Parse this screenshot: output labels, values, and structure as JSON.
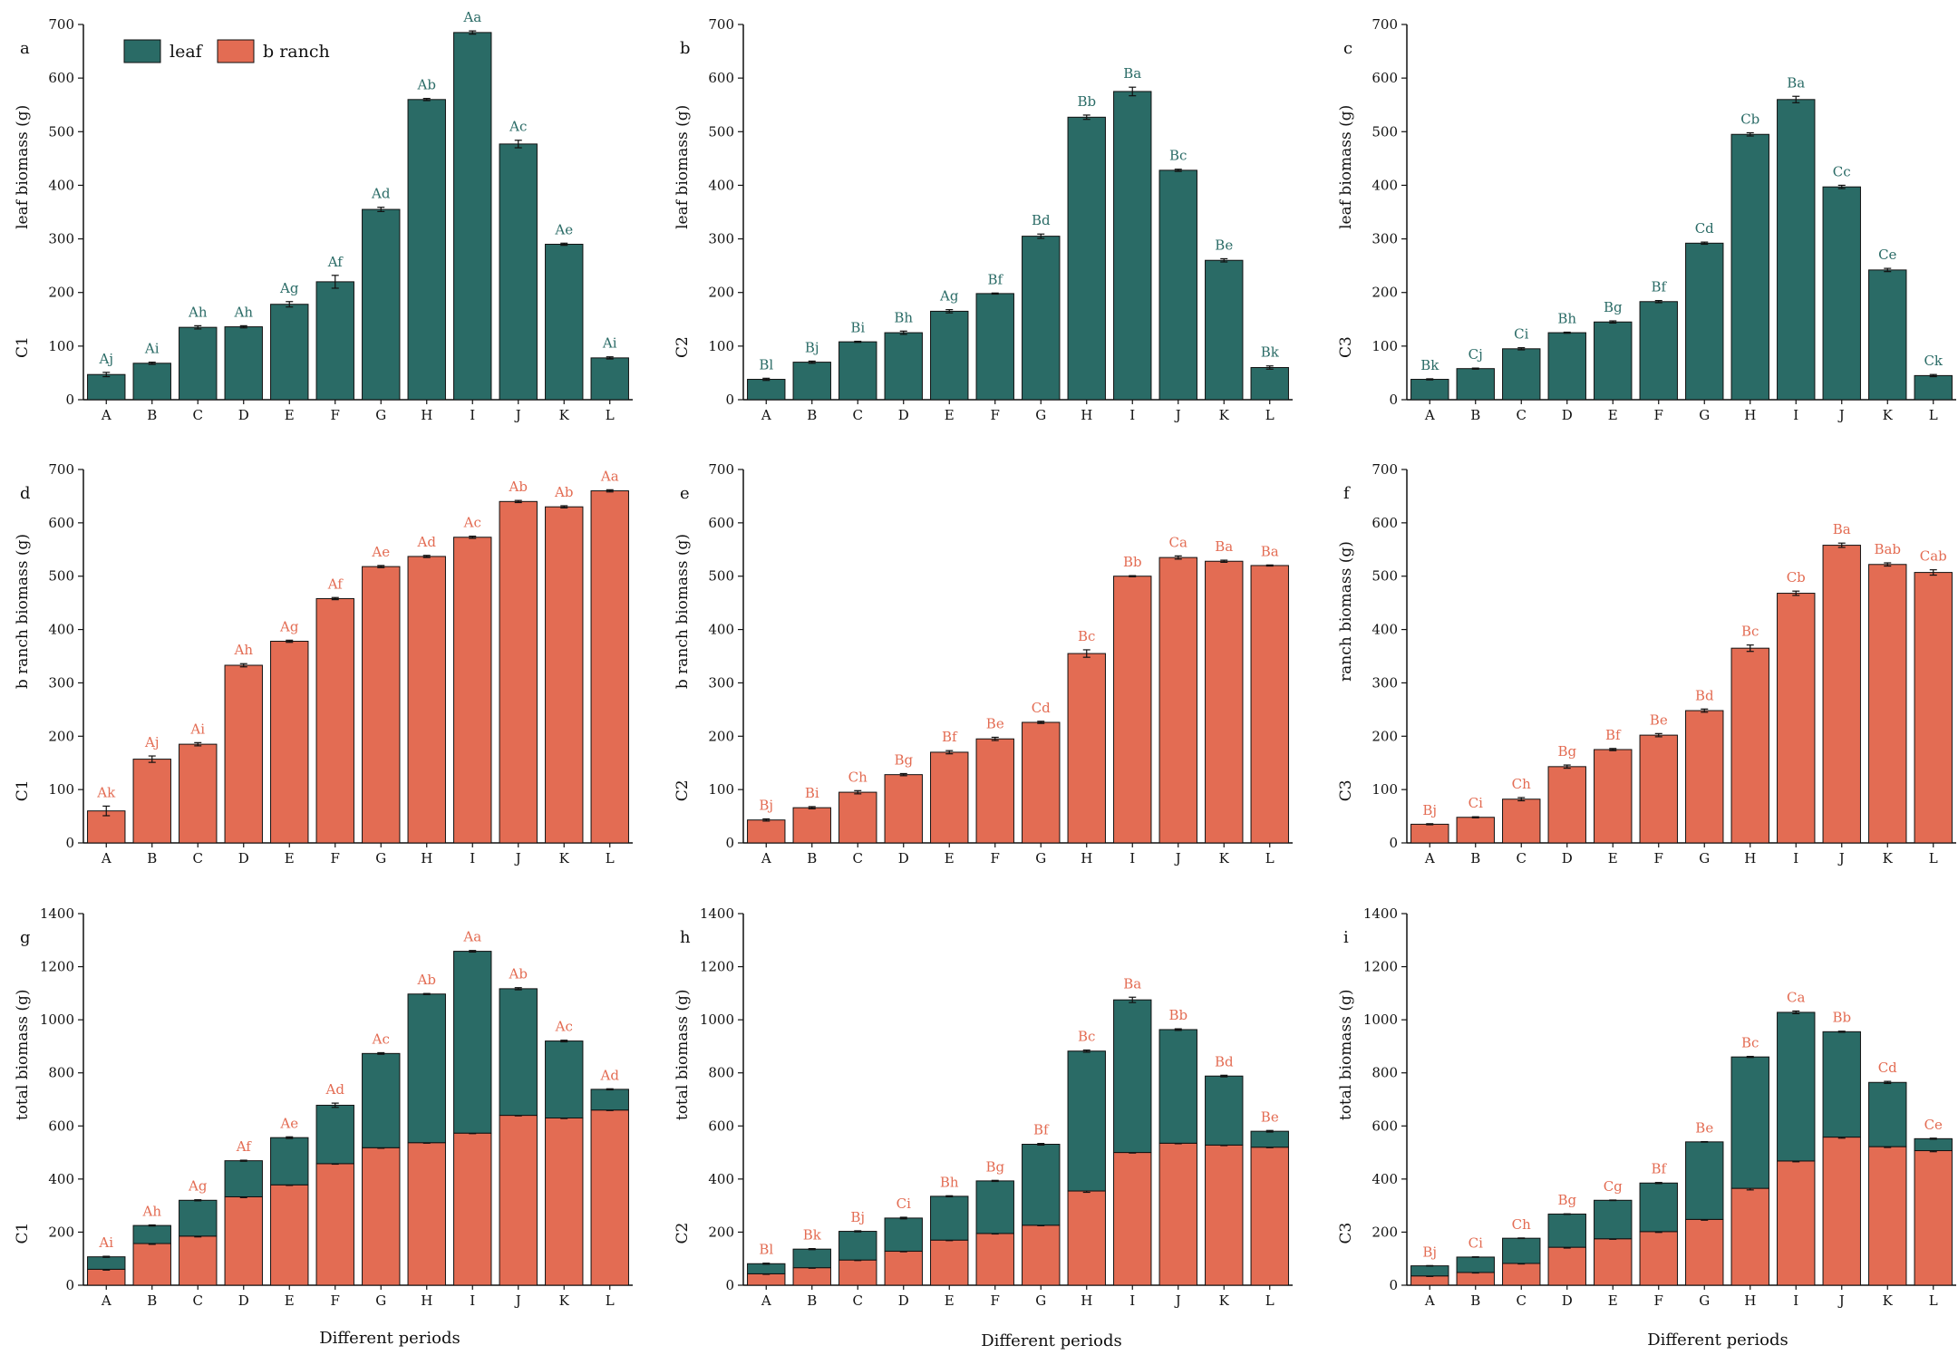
{
  "colors": {
    "leaf": "#2a6b66",
    "branch": "#e36c53",
    "axis": "#111111"
  },
  "legend": {
    "leaf": "leaf",
    "branch": "b ranch"
  },
  "xtitle": "Different periods",
  "categories": [
    "A",
    "B",
    "C",
    "D",
    "E",
    "F",
    "G",
    "H",
    "I",
    "J",
    "K",
    "L"
  ],
  "chart_data": [
    {
      "panel": "a",
      "type": "bar",
      "ylabel": "leaf biomass (g)",
      "site": "C1",
      "ylim": [
        0,
        700
      ],
      "ticks": [
        0,
        100,
        200,
        300,
        400,
        500,
        600,
        700
      ],
      "series": [
        {
          "name": "leaf",
          "values": [
            47,
            68,
            135,
            136,
            178,
            220,
            355,
            560,
            685,
            477,
            290,
            78
          ],
          "errors": [
            4,
            2,
            3,
            2,
            5,
            12,
            4,
            2,
            3,
            7,
            2,
            2
          ]
        }
      ],
      "labels": [
        "Aj",
        "Ai",
        "Ah",
        "Ah",
        "Ag",
        "Af",
        "Ad",
        "Ab",
        "Aa",
        "Ac",
        "Ae",
        "Ai"
      ]
    },
    {
      "panel": "b",
      "type": "bar",
      "ylabel": "leaf biomass (g)",
      "site": "C2",
      "ylim": [
        0,
        700
      ],
      "ticks": [
        0,
        100,
        200,
        300,
        400,
        500,
        600,
        700
      ],
      "series": [
        {
          "name": "leaf",
          "values": [
            38,
            70,
            108,
            125,
            165,
            198,
            305,
            527,
            575,
            428,
            260,
            60
          ],
          "errors": [
            2,
            2,
            1,
            3,
            3,
            1,
            4,
            4,
            8,
            2,
            3,
            3
          ]
        }
      ],
      "labels": [
        "Bl",
        "Bj",
        "Bi",
        "Bh",
        "Ag",
        "Bf",
        "Bd",
        "Bb",
        "Ba",
        "Bc",
        "Be",
        "Bk"
      ]
    },
    {
      "panel": "c",
      "type": "bar",
      "ylabel": "leaf biomass (g)",
      "site": "C3",
      "ylim": [
        0,
        700
      ],
      "ticks": [
        0,
        100,
        200,
        300,
        400,
        500,
        600,
        700
      ],
      "series": [
        {
          "name": "leaf",
          "values": [
            38,
            58,
            95,
            125,
            145,
            183,
            292,
            495,
            560,
            397,
            242,
            45
          ],
          "errors": [
            1,
            1,
            2,
            1,
            2,
            2,
            2,
            3,
            6,
            3,
            3,
            2
          ]
        }
      ],
      "labels": [
        "Bk",
        "Cj",
        "Ci",
        "Bh",
        "Bg",
        "Bf",
        "Cd",
        "Cb",
        "Ba",
        "Cc",
        "Ce",
        "Ck"
      ]
    },
    {
      "panel": "d",
      "type": "bar",
      "ylabel": "b ranch biomass (g)",
      "site": "C1",
      "ylim": [
        0,
        700
      ],
      "ticks": [
        0,
        100,
        200,
        300,
        400,
        500,
        600,
        700
      ],
      "series": [
        {
          "name": "branch",
          "values": [
            60,
            157,
            185,
            333,
            378,
            458,
            518,
            537,
            573,
            640,
            630,
            660
          ],
          "errors": [
            9,
            6,
            3,
            3,
            2,
            2,
            2,
            2,
            2,
            2,
            2,
            2
          ]
        }
      ],
      "labels": [
        "Ak",
        "Aj",
        "Ai",
        "Ah",
        "Ag",
        "Af",
        "Ae",
        "Ad",
        "Ac",
        "Ab",
        "Ab",
        "Aa"
      ]
    },
    {
      "panel": "e",
      "type": "bar",
      "ylabel": "b ranch biomass (g)",
      "site": "C2",
      "ylim": [
        0,
        700
      ],
      "ticks": [
        0,
        100,
        200,
        300,
        400,
        500,
        600,
        700
      ],
      "series": [
        {
          "name": "branch",
          "values": [
            43,
            66,
            95,
            128,
            170,
            195,
            226,
            355,
            500,
            535,
            528,
            520
          ],
          "errors": [
            2,
            2,
            3,
            2,
            3,
            3,
            2,
            7,
            1,
            3,
            2,
            1
          ]
        }
      ],
      "labels": [
        "Bj",
        "Bi",
        "Ch",
        "Bg",
        "Bf",
        "Be",
        "Cd",
        "Bc",
        "Bb",
        "Ca",
        "Ba",
        "Ba"
      ]
    },
    {
      "panel": "f",
      "type": "bar",
      "ylabel": "ranch biomass (g)",
      "site": "C3",
      "ylim": [
        0,
        700
      ],
      "ticks": [
        0,
        100,
        200,
        300,
        400,
        500,
        600,
        700
      ],
      "series": [
        {
          "name": "branch",
          "values": [
            35,
            48,
            82,
            143,
            175,
            202,
            248,
            365,
            468,
            558,
            522,
            507
          ],
          "errors": [
            1,
            1,
            3,
            3,
            2,
            3,
            3,
            6,
            4,
            4,
            3,
            5
          ]
        }
      ],
      "labels": [
        "Bj",
        "Ci",
        "Ch",
        "Bg",
        "Bf",
        "Be",
        "Bd",
        "Bc",
        "Cb",
        "Ba",
        "Bab",
        "Cab"
      ]
    },
    {
      "panel": "g",
      "type": "stacked_bar",
      "ylabel": "total biomass (g)",
      "site": "C1",
      "ylim": [
        0,
        1400
      ],
      "ticks": [
        0,
        200,
        400,
        600,
        800,
        1000,
        1200,
        1400
      ],
      "series": [
        {
          "name": "branch",
          "values": [
            60,
            157,
            185,
            333,
            378,
            458,
            518,
            537,
            573,
            640,
            630,
            660
          ],
          "errors": [
            3,
            3,
            3,
            3,
            2,
            2,
            2,
            2,
            2,
            2,
            2,
            2
          ]
        },
        {
          "name": "leaf",
          "values": [
            47,
            68,
            135,
            136,
            178,
            220,
            355,
            560,
            685,
            477,
            290,
            78
          ],
          "errors": [
            2,
            2,
            2,
            2,
            3,
            8,
            3,
            2,
            3,
            4,
            3,
            2
          ]
        }
      ],
      "labels": [
        "Ai",
        "Ah",
        "Ag",
        "Af",
        "Ae",
        "Ad",
        "Ac",
        "Ab",
        "Aa",
        "Ab",
        "Ac",
        "Ad"
      ]
    },
    {
      "panel": "h",
      "type": "stacked_bar",
      "ylabel": "total biomass (g)",
      "site": "C2",
      "ylim": [
        0,
        1400
      ],
      "ticks": [
        0,
        200,
        400,
        600,
        800,
        1000,
        1200,
        1400
      ],
      "series": [
        {
          "name": "branch",
          "values": [
            43,
            66,
            95,
            128,
            170,
            195,
            226,
            355,
            500,
            535,
            528,
            520
          ],
          "errors": [
            2,
            2,
            2,
            2,
            2,
            2,
            2,
            5,
            2,
            2,
            2,
            2
          ]
        },
        {
          "name": "leaf",
          "values": [
            38,
            70,
            108,
            125,
            165,
            198,
            305,
            527,
            575,
            428,
            260,
            60
          ],
          "errors": [
            2,
            2,
            2,
            3,
            2,
            2,
            3,
            4,
            10,
            3,
            3,
            3
          ]
        }
      ],
      "labels": [
        "Bl",
        "Bk",
        "Bj",
        "Ci",
        "Bh",
        "Bg",
        "Bf",
        "Bc",
        "Ba",
        "Bb",
        "Bd",
        "Be"
      ]
    },
    {
      "panel": "i",
      "type": "stacked_bar",
      "ylabel": "total biomass (g)",
      "site": "C3",
      "ylim": [
        0,
        1400
      ],
      "ticks": [
        0,
        200,
        400,
        600,
        800,
        1000,
        1200,
        1400
      ],
      "series": [
        {
          "name": "branch",
          "values": [
            35,
            48,
            82,
            143,
            175,
            202,
            248,
            365,
            468,
            558,
            522,
            507
          ],
          "errors": [
            2,
            2,
            2,
            3,
            2,
            3,
            3,
            6,
            3,
            4,
            3,
            4
          ]
        },
        {
          "name": "leaf",
          "values": [
            38,
            58,
            95,
            125,
            145,
            183,
            292,
            495,
            560,
            397,
            242,
            45
          ],
          "errors": [
            1,
            1,
            1,
            1,
            1,
            2,
            1,
            2,
            5,
            2,
            4,
            2
          ]
        }
      ],
      "labels": [
        "Bj",
        "Ci",
        "Ch",
        "Bg",
        "Cg",
        "Bf",
        "Be",
        "Bc",
        "Ca",
        "Bb",
        "Cd",
        "Ce"
      ]
    }
  ]
}
